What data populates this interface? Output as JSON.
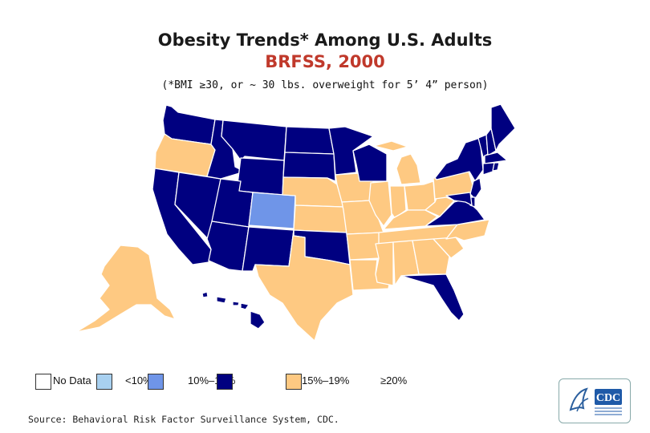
{
  "title": {
    "line1": "Obesity Trends* Among U.S. Adults",
    "line2": "BRFSS, 2000",
    "subtitle": "(*BMI ≥30, or ~ 30 lbs. overweight for 5’ 4” person)"
  },
  "colors": {
    "no_data": "#ffffff",
    "lt10": "#a8d0f0",
    "p10_14": "#6f95e8",
    "p15_19": "#000080",
    "ge20": "#fec982",
    "title_accent": "#c0392b"
  },
  "legend": [
    {
      "label": "No Data",
      "category": "no_data"
    },
    {
      "label": "<10%",
      "category": "lt10"
    },
    {
      "label": "10%–14%",
      "category": "p10_14"
    },
    {
      "label": "15%–19%",
      "category": "p15_19"
    },
    {
      "label": "≥20%",
      "category": "ge20"
    }
  ],
  "source": "Source: Behavioral Risk Factor Surveillance System, CDC.",
  "logo": {
    "text": "CDC"
  },
  "states": {
    "WA": "p15_19",
    "OR": "ge20",
    "CA": "p15_19",
    "NV": "p15_19",
    "ID": "p15_19",
    "MT": "p15_19",
    "WY": "p15_19",
    "UT": "p15_19",
    "AZ": "p15_19",
    "CO": "p10_14",
    "NM": "p15_19",
    "ND": "p15_19",
    "SD": "p15_19",
    "NE": "ge20",
    "KS": "ge20",
    "OK": "p15_19",
    "TX": "ge20",
    "MN": "p15_19",
    "IA": "ge20",
    "MO": "ge20",
    "AR": "ge20",
    "LA": "ge20",
    "WI": "p15_19",
    "IL": "ge20",
    "MI": "ge20",
    "IN": "ge20",
    "OH": "ge20",
    "KY": "ge20",
    "TN": "ge20",
    "MS": "ge20",
    "AL": "ge20",
    "GA": "ge20",
    "FL": "p15_19",
    "SC": "ge20",
    "NC": "ge20",
    "VA": "p15_19",
    "WV": "ge20",
    "PA": "ge20",
    "NY": "p15_19",
    "VT": "p15_19",
    "NH": "p15_19",
    "ME": "p15_19",
    "MA": "p15_19",
    "CT": "p15_19",
    "RI": "p15_19",
    "NJ": "p15_19",
    "DE": "p15_19",
    "MD": "p15_19",
    "AK": "ge20",
    "HI": "p15_19"
  }
}
